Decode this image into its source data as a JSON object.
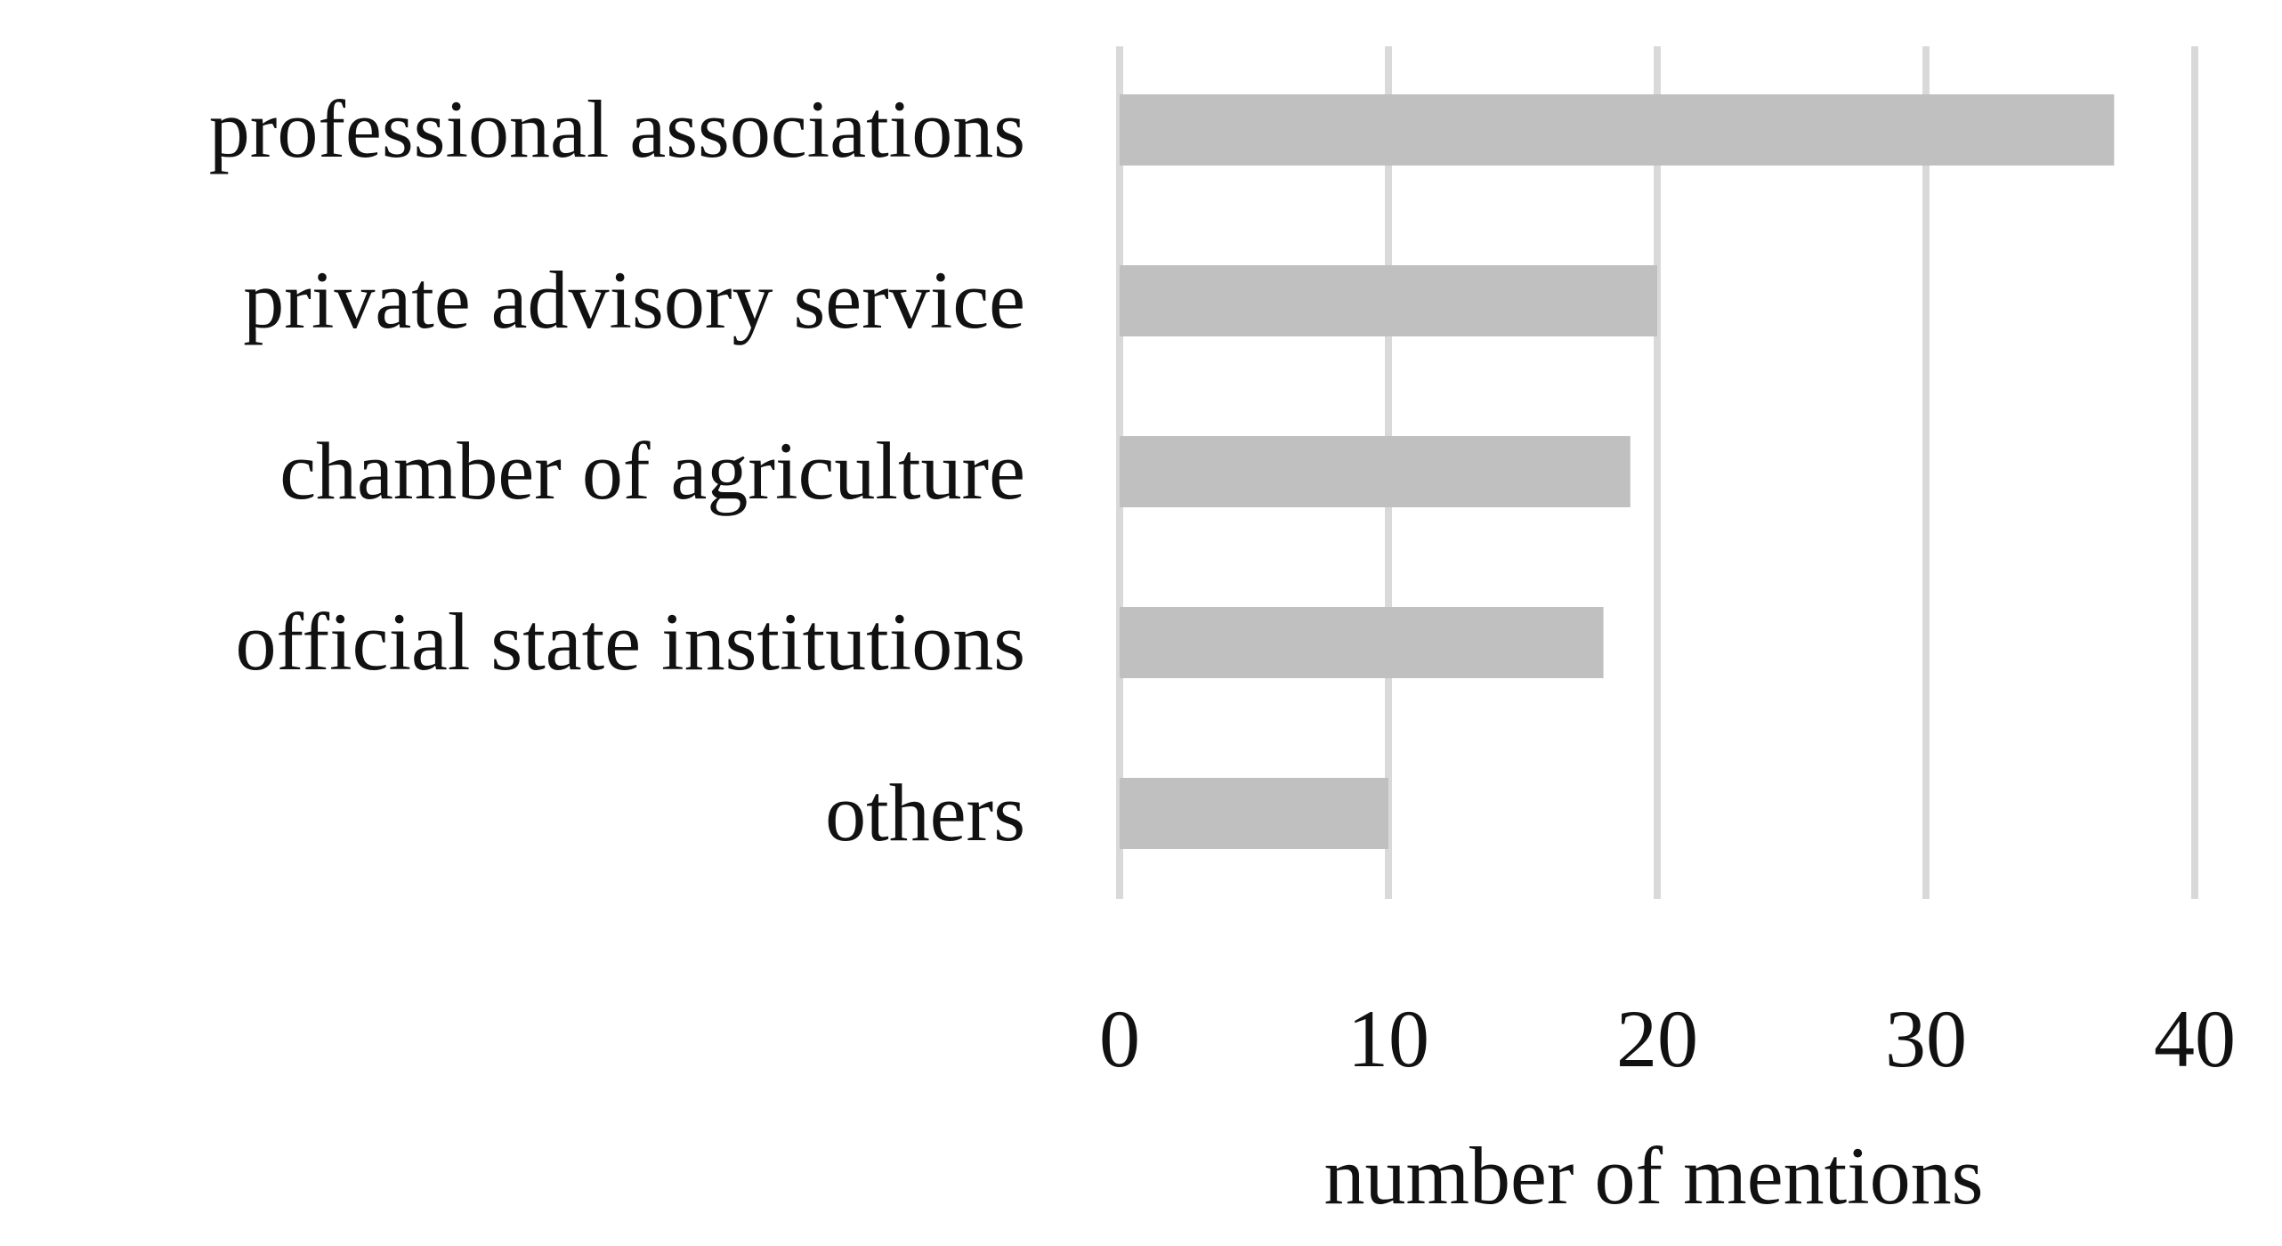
{
  "chart_data": {
    "type": "bar",
    "orientation": "horizontal",
    "categories": [
      "professional associations",
      "private advisory service",
      "chamber of agriculture",
      "official state institutions",
      "others"
    ],
    "values": [
      37,
      20,
      19,
      18,
      10
    ],
    "xlabel": "number of mentions",
    "xlim": [
      0,
      40
    ],
    "xticks": [
      "0",
      "10",
      "20",
      "30",
      "40"
    ],
    "grid": "vertical",
    "bar_color": "#c0c0c0",
    "grid_color": "#d9d9d9"
  }
}
